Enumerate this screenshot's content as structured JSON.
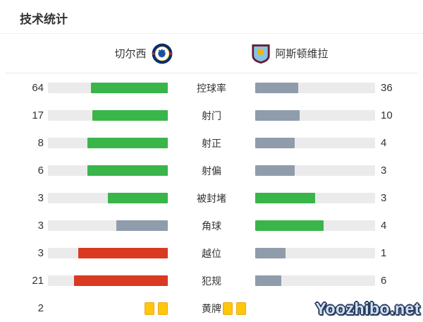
{
  "title": "技术统计",
  "header": {
    "home_team": "切尔西",
    "away_team": "阿斯顿维拉"
  },
  "colors": {
    "green": "#3ab54a",
    "slate": "#8f9cab",
    "red": "#d83a22",
    "track": "#ebebeb",
    "card_fill": "#ffc60b",
    "card_border": "#eda912"
  },
  "rows": [
    {
      "label": "控球率",
      "home": {
        "value": "64",
        "pct": 64,
        "color": "green"
      },
      "away": {
        "value": "36",
        "pct": 36,
        "color": "slate"
      }
    },
    {
      "label": "射门",
      "home": {
        "value": "17",
        "pct": 63,
        "color": "green"
      },
      "away": {
        "value": "10",
        "pct": 37,
        "color": "slate"
      }
    },
    {
      "label": "射正",
      "home": {
        "value": "8",
        "pct": 67,
        "color": "green"
      },
      "away": {
        "value": "4",
        "pct": 33,
        "color": "slate"
      }
    },
    {
      "label": "射偏",
      "home": {
        "value": "6",
        "pct": 67,
        "color": "green"
      },
      "away": {
        "value": "3",
        "pct": 33,
        "color": "slate"
      }
    },
    {
      "label": "被封堵",
      "home": {
        "value": "3",
        "pct": 50,
        "color": "green"
      },
      "away": {
        "value": "3",
        "pct": 50,
        "color": "green"
      }
    },
    {
      "label": "角球",
      "home": {
        "value": "3",
        "pct": 43,
        "color": "slate"
      },
      "away": {
        "value": "4",
        "pct": 57,
        "color": "green"
      }
    },
    {
      "label": "越位",
      "home": {
        "value": "3",
        "pct": 75,
        "color": "red"
      },
      "away": {
        "value": "1",
        "pct": 25,
        "color": "slate"
      }
    },
    {
      "label": "犯规",
      "home": {
        "value": "21",
        "pct": 78,
        "color": "red"
      },
      "away": {
        "value": "6",
        "pct": 22,
        "color": "slate"
      }
    },
    {
      "label": "黄牌",
      "type": "cards",
      "home": {
        "value": "2",
        "cards": 2
      },
      "away": {
        "value": "",
        "cards": 2
      }
    }
  ],
  "chart_data": {
    "type": "bar",
    "title": "技术统计",
    "categories": [
      "控球率",
      "射门",
      "射正",
      "射偏",
      "被封堵",
      "角球",
      "越位",
      "犯规",
      "黄牌"
    ],
    "series": [
      {
        "name": "切尔西",
        "values": [
          64,
          17,
          8,
          6,
          3,
          3,
          3,
          21,
          2
        ]
      },
      {
        "name": "阿斯顿维拉",
        "values": [
          36,
          10,
          4,
          3,
          3,
          4,
          1,
          6,
          2
        ]
      }
    ],
    "layout": "horizontal-paired-bars, fills anchored toward center label, fill length = value/(home+away)",
    "status_colors": {
      "leading": "#3ab54a",
      "trailing": "#8f9cab",
      "negative-stat-leading": "#d83a22"
    }
  },
  "watermark": "Yoozhibo.net"
}
